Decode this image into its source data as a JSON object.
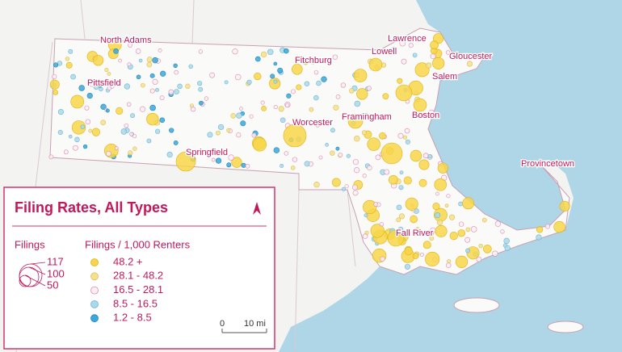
{
  "places": [
    "North Adams",
    "Pittsfield",
    "Fitchburg",
    "Lawrence",
    "Lowell",
    "Gloucester",
    "Salem",
    "Worcester",
    "Framingham",
    "Boston",
    "Springfield",
    "Provincetown",
    "Fall River"
  ],
  "legend": {
    "title": "Filing Rates, All Types",
    "north": "N",
    "size_heading": "Filings",
    "sizes": [
      117,
      100,
      50
    ],
    "rate_heading": "Filings / 1,000 Renters",
    "rates": [
      "48.2 +",
      "28.1 - 48.2",
      "16.5 - 28.1",
      "8.5 - 16.5",
      "1.2 - 8.5"
    ]
  },
  "scale": {
    "start": "0",
    "end": "10 mi"
  }
}
